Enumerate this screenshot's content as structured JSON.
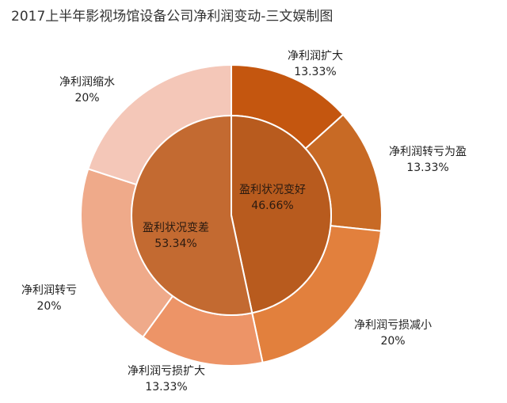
{
  "chart_data": {
    "type": "pie",
    "title": "2017上半年影视场馆设备公司净利润变动-三文娱制图",
    "inner_ring": [
      {
        "label": "盈利状况变好",
        "pct_text": "46.66%",
        "value": 46.66,
        "color": "#b85b1e"
      },
      {
        "label": "盈利状况变差",
        "pct_text": "53.34%",
        "value": 53.34,
        "color": "#c36a31"
      }
    ],
    "outer_ring": [
      {
        "label": "净利润扩大",
        "pct_text": "13.33%",
        "value": 13.33,
        "color": "#c4560f"
      },
      {
        "label": "净利润转亏为盈",
        "pct_text": "13.33%",
        "value": 13.33,
        "color": "#c86a25"
      },
      {
        "label": "净利润亏损减小",
        "pct_text": "20%",
        "value": 20,
        "color": "#e2803d"
      },
      {
        "label": "净利润亏损扩大",
        "pct_text": "13.33%",
        "value": 13.33,
        "color": "#ed9467"
      },
      {
        "label": "净利润转亏",
        "pct_text": "20%",
        "value": 20,
        "color": "#efaa8a"
      },
      {
        "label": "净利润缩水",
        "pct_text": "20%",
        "value": 20,
        "color": "#f4c7b8"
      }
    ],
    "start_angle": "12 o'clock",
    "direction": "clockwise"
  }
}
